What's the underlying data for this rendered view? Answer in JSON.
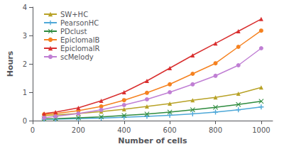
{
  "chart_data": {
    "type": "line",
    "x": [
      50,
      100,
      200,
      300,
      400,
      500,
      600,
      700,
      800,
      900,
      1000
    ],
    "series": [
      {
        "name": "SW+HC",
        "color": "#b8a227",
        "marker": "triangle",
        "line_style": "solid",
        "values": [
          0.18,
          0.2,
          0.25,
          0.32,
          0.4,
          0.5,
          0.6,
          0.72,
          0.82,
          0.95,
          1.17
        ]
      },
      {
        "name": "PearsonHC",
        "color": "#4ea8d8",
        "marker": "plus",
        "line_style": "solid",
        "values": [
          0.05,
          0.05,
          0.07,
          0.09,
          0.12,
          0.15,
          0.19,
          0.24,
          0.3,
          0.38,
          0.48
        ]
      },
      {
        "name": "PDclust",
        "color": "#2e8b3e",
        "marker": "x",
        "line_style": "solid",
        "values": [
          0.06,
          0.07,
          0.1,
          0.13,
          0.18,
          0.23,
          0.3,
          0.38,
          0.47,
          0.57,
          0.68
        ]
      },
      {
        "name": "EpiclomalB",
        "color": "#f58220",
        "marker": "circle",
        "line_style": "solid",
        "values": [
          0.22,
          0.25,
          0.35,
          0.5,
          0.72,
          0.98,
          1.28,
          1.65,
          2.02,
          2.6,
          3.17
        ]
      },
      {
        "name": "EpiclomalR",
        "color": "#d93030",
        "marker": "triangle",
        "line_style": "solid",
        "values": [
          0.25,
          0.3,
          0.45,
          0.7,
          1.0,
          1.4,
          1.85,
          2.3,
          2.72,
          3.15,
          3.58
        ]
      },
      {
        "name": "scMelody",
        "color": "#c07fd4",
        "marker": "circle",
        "line_style": "solid",
        "values": [
          0.1,
          0.15,
          0.25,
          0.38,
          0.55,
          0.75,
          1.0,
          1.28,
          1.58,
          1.95,
          2.55
        ]
      }
    ],
    "xlabel": "Number of cells",
    "ylabel": "Hours",
    "xlim": [
      0,
      1050
    ],
    "ylim": [
      0,
      4
    ],
    "xticks": [
      0,
      200,
      400,
      600,
      800,
      1000
    ],
    "yticks": [
      0,
      1,
      2,
      3,
      4
    ],
    "grid": false,
    "legend": "upper left"
  }
}
